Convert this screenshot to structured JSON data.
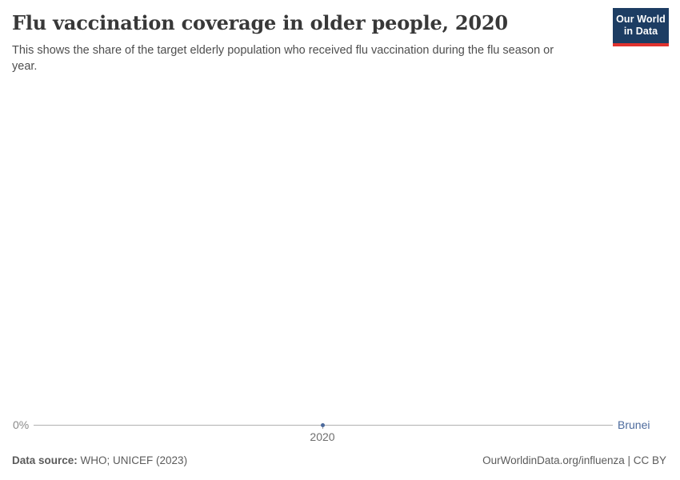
{
  "header": {
    "title": "Flu vaccination coverage in older people, 2020",
    "subtitle": "This shows the share of the target elderly population who received flu vaccination during the flu season or year.",
    "logo": {
      "line1": "Our World",
      "line2": "in Data"
    }
  },
  "chart": {
    "y_axis_tick_label": "0%",
    "x_axis_tick_label": "2020",
    "entity_label": "Brunei"
  },
  "chart_data": {
    "type": "line",
    "title": "Flu vaccination coverage in older people, 2020",
    "subtitle": "This shows the share of the target elderly population who received flu vaccination during the flu season or year.",
    "series": [
      {
        "name": "Brunei",
        "color": "#4C6A9C",
        "x": [
          2020
        ],
        "values": [
          0
        ]
      }
    ],
    "x_ticks": [
      2020
    ],
    "y_ticks": [
      0
    ],
    "y_tick_labels": [
      "0%"
    ],
    "xlabel": "",
    "ylabel": "",
    "unit": "%",
    "grid": false,
    "legend_position": "end-of-line-label"
  },
  "footer": {
    "source_label": "Data source:",
    "source_value": "WHO; UNICEF (2023)",
    "rights": "OurWorldinData.org/influenza | CC BY"
  },
  "colors": {
    "accent_blue": "#4C6A9C",
    "logo_navy": "#1d3d63",
    "logo_red": "#e0322e",
    "axis_line": "#b0b0b0",
    "text_dark": "#383838",
    "text_gray": "#4e4e4e"
  }
}
